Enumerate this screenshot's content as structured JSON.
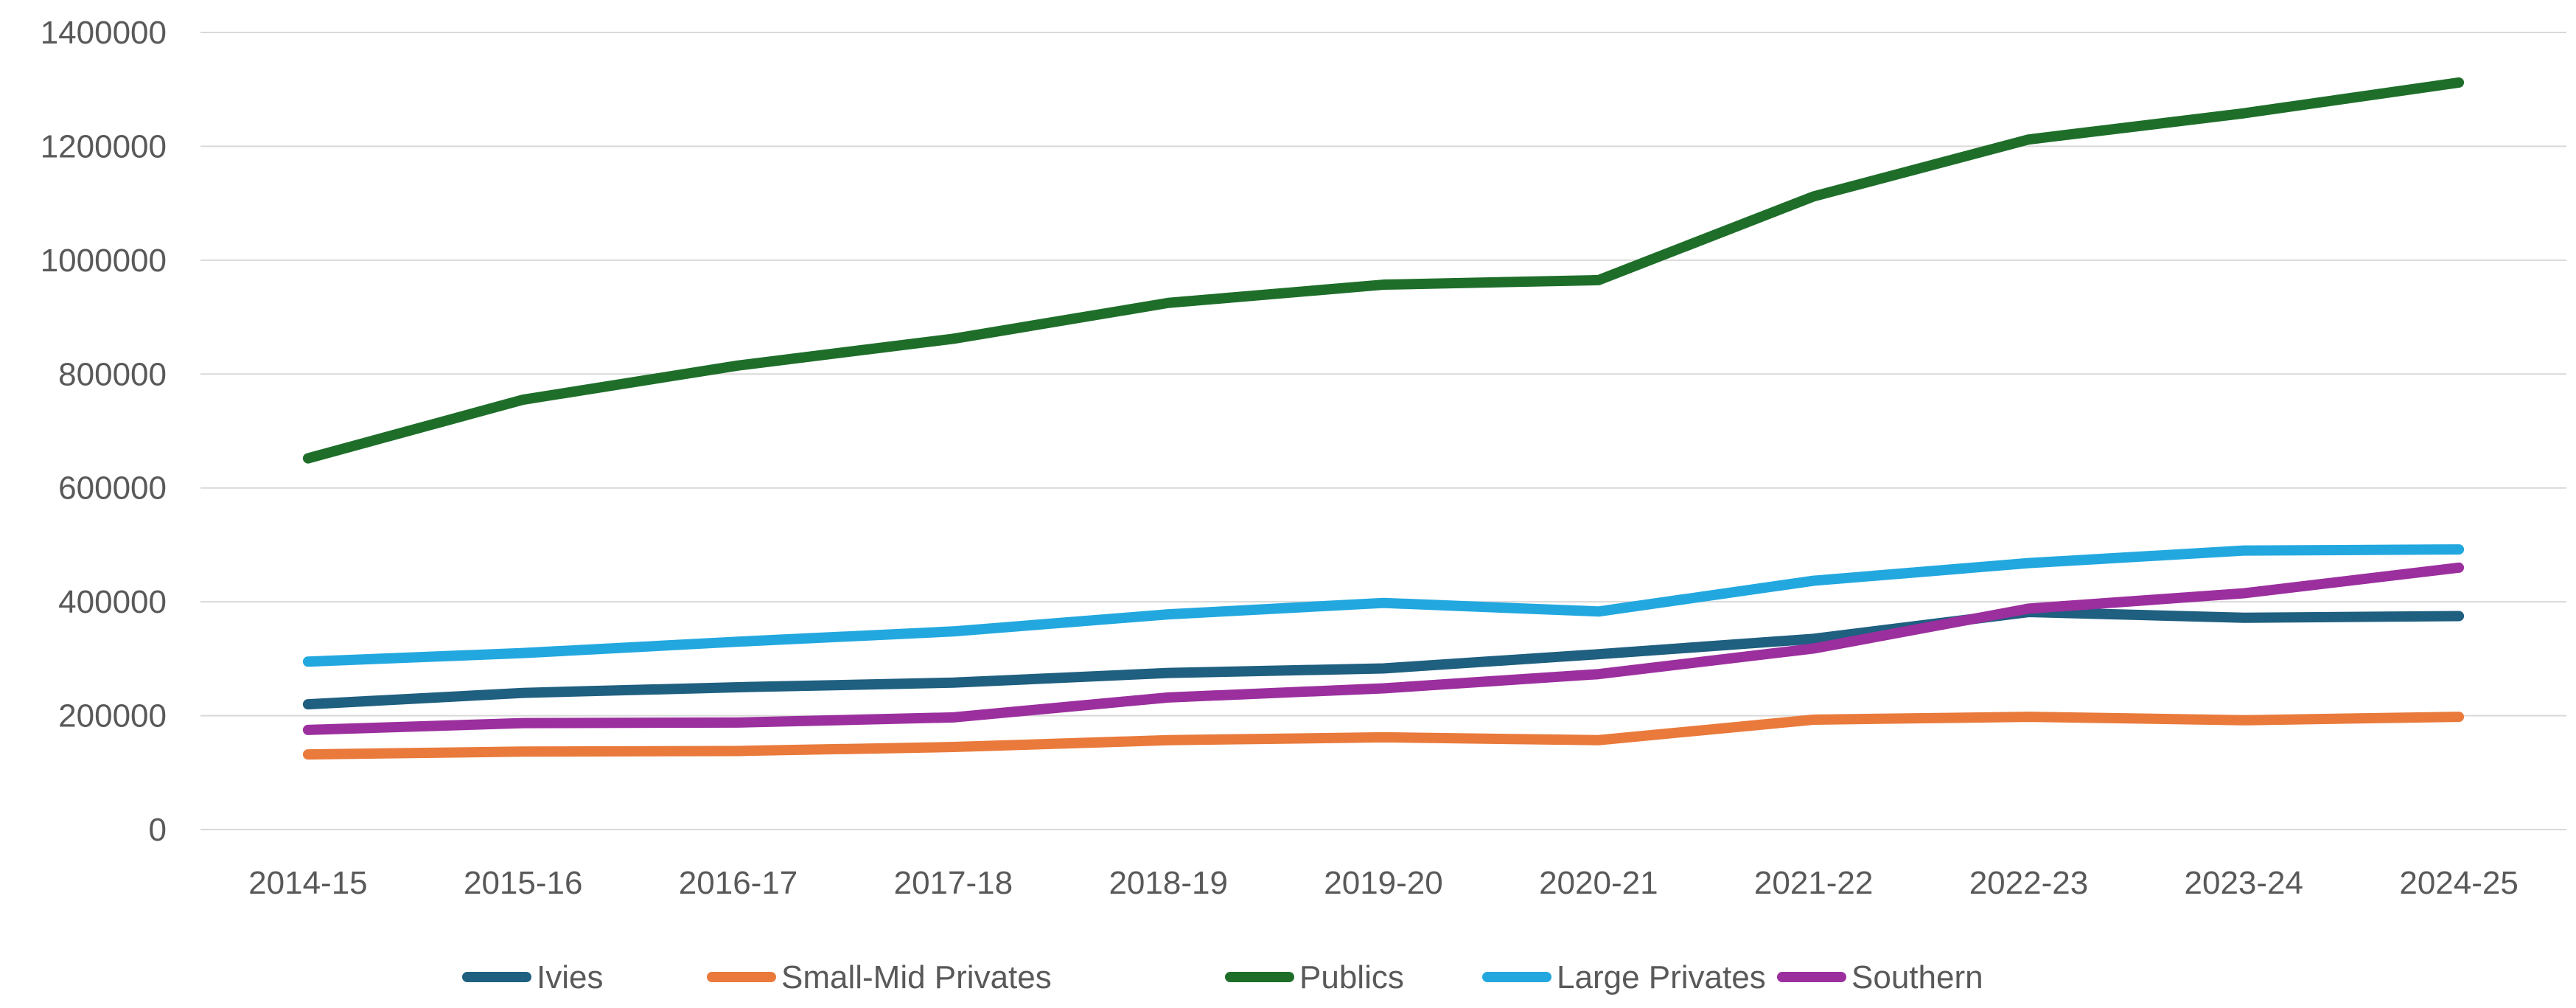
{
  "chart_data": {
    "type": "line",
    "title": "",
    "xlabel": "",
    "ylabel": "",
    "categories": [
      "2014-15",
      "2015-16",
      "2016-17",
      "2017-18",
      "2018-19",
      "2019-20",
      "2020-21",
      "2021-22",
      "2022-23",
      "2023-24",
      "2024-25"
    ],
    "ylim": [
      0,
      1400000
    ],
    "yticks": [
      0,
      200000,
      400000,
      600000,
      800000,
      1000000,
      1200000,
      1400000
    ],
    "ytick_labels": [
      "0",
      "200000",
      "400000",
      "600000",
      "800000",
      "1000000",
      "1200000",
      "1400000"
    ],
    "grid": "horizontal",
    "legend_position": "bottom",
    "series": [
      {
        "name": "Ivies",
        "color": "#1f5f80",
        "values": [
          220000,
          240000,
          250000,
          258000,
          275000,
          283000,
          308000,
          335000,
          382000,
          372000,
          375000
        ]
      },
      {
        "name": "Small-Mid Privates",
        "color": "#e97a3b",
        "values": [
          132000,
          137000,
          138000,
          145000,
          157000,
          162000,
          157000,
          193000,
          198000,
          192000,
          198000
        ]
      },
      {
        "name": "Publics",
        "color": "#1e6e2a",
        "values": [
          652000,
          755000,
          815000,
          862000,
          925000,
          957000,
          965000,
          1112000,
          1212000,
          1258000,
          1312000
        ]
      },
      {
        "name": "Large Privates",
        "color": "#22a8df",
        "values": [
          295000,
          310000,
          330000,
          348000,
          378000,
          398000,
          383000,
          437000,
          468000,
          490000,
          492000
        ]
      },
      {
        "name": "Southern",
        "color": "#9b2f9e",
        "values": [
          175000,
          187000,
          188000,
          197000,
          232000,
          248000,
          273000,
          318000,
          388000,
          415000,
          460000
        ]
      }
    ]
  }
}
